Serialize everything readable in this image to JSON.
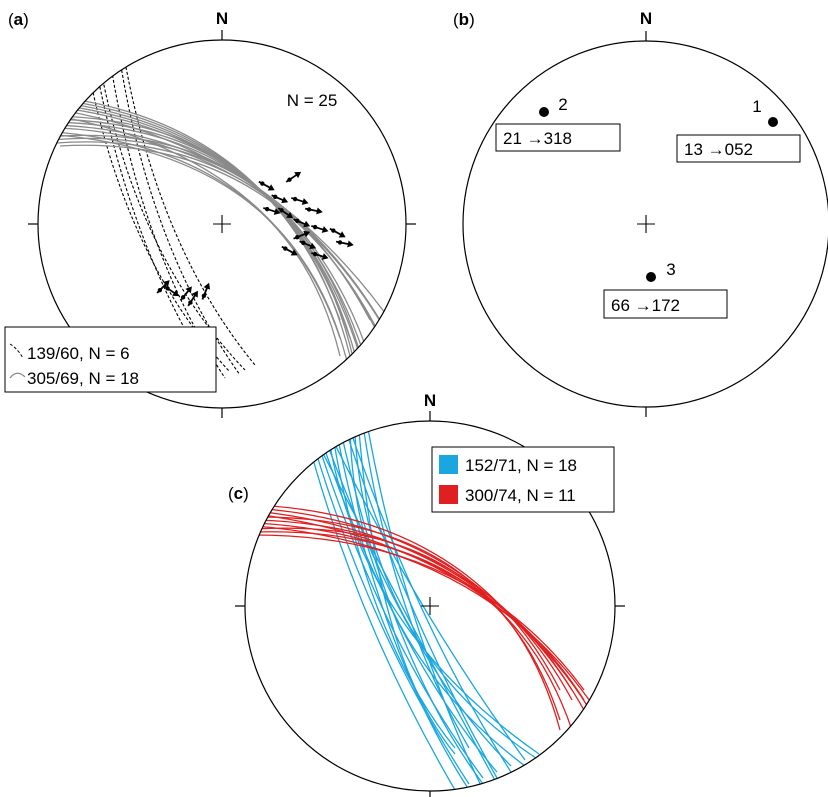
{
  "figure": {
    "panel_a": {
      "label_open": "(",
      "label_letter": "a",
      "label_close": ")",
      "north": "N",
      "count_label": "N = 25",
      "legend": [
        {
          "text": "139/60, N = 6",
          "style": "dashed",
          "color": "#000000"
        },
        {
          "text": "305/69, N = 18",
          "style": "solid",
          "color": "#8a8a8a"
        }
      ],
      "dashed_planes_count": 6,
      "solid_planes_count": 18
    },
    "panel_b": {
      "label_open": "(",
      "label_letter": "b",
      "label_close": ")",
      "north": "N",
      "axes": [
        {
          "id": "1",
          "plunge": 13,
          "trend": "052",
          "box_text": "13 →052"
        },
        {
          "id": "2",
          "plunge": 21,
          "trend": "318",
          "box_text": "21 →318"
        },
        {
          "id": "3",
          "plunge": 66,
          "trend": "172",
          "box_text": "66 →172"
        }
      ]
    },
    "panel_c": {
      "label_open": "(",
      "label_letter": "c",
      "label_close": ")",
      "north": "N",
      "legend": [
        {
          "text": "152/71, N = 18",
          "color": "#1aa7e0"
        },
        {
          "text": "300/74, N = 11",
          "color": "#e02020"
        }
      ]
    }
  }
}
